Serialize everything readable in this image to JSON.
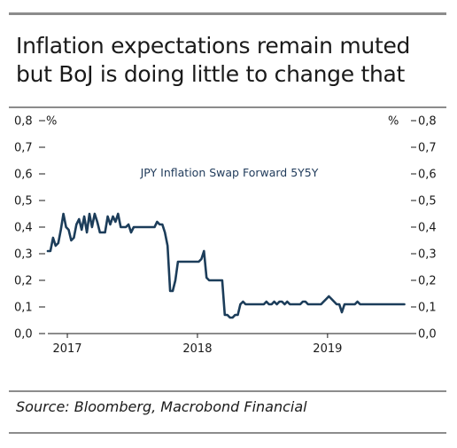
{
  "title": "Inflation expectations remain muted but BoJ is doing little to change that",
  "source": "Source: Bloomberg, Macrobond Financial",
  "colors": {
    "line": "#1c3d5a",
    "axis": "#1a1a1a",
    "rule": "#8c8c8c"
  },
  "chart_data": {
    "type": "line",
    "title": "",
    "series_label": "JPY Inflation Swap Forward 5Y5Y",
    "left_unit": "%",
    "right_unit": "%",
    "ylim": [
      0,
      0.8
    ],
    "y_ticks": [
      "0,0",
      "0,1",
      "0,2",
      "0,3",
      "0,4",
      "0,5",
      "0,6",
      "0,7",
      "0,8"
    ],
    "y_tick_values": [
      0,
      0.1,
      0.2,
      0.3,
      0.4,
      0.5,
      0.6,
      0.7,
      0.8
    ],
    "x_tick_labels": [
      "2017",
      "2018",
      "2019"
    ],
    "x_tick_values": [
      2017.0,
      2018.0,
      2019.0
    ],
    "xlim": [
      2016.85,
      2019.6
    ],
    "grid": false,
    "series": [
      {
        "name": "JPY Inflation Swap Forward 5Y5Y",
        "x": [
          2016.85,
          2016.87,
          2016.89,
          2016.91,
          2016.93,
          2016.95,
          2016.97,
          2016.99,
          2017.01,
          2017.03,
          2017.05,
          2017.07,
          2017.09,
          2017.11,
          2017.13,
          2017.15,
          2017.17,
          2017.19,
          2017.21,
          2017.23,
          2017.25,
          2017.27,
          2017.29,
          2017.31,
          2017.33,
          2017.35,
          2017.37,
          2017.39,
          2017.41,
          2017.43,
          2017.45,
          2017.47,
          2017.49,
          2017.51,
          2017.53,
          2017.55,
          2017.57,
          2017.59,
          2017.61,
          2017.63,
          2017.65,
          2017.67,
          2017.69,
          2017.71,
          2017.73,
          2017.75,
          2017.77,
          2017.79,
          2017.81,
          2017.83,
          2017.85,
          2017.87,
          2017.89,
          2017.91,
          2017.93,
          2017.95,
          2017.97,
          2017.99,
          2018.01,
          2018.03,
          2018.05,
          2018.07,
          2018.09,
          2018.11,
          2018.13,
          2018.15,
          2018.17,
          2018.19,
          2018.21,
          2018.23,
          2018.25,
          2018.27,
          2018.29,
          2018.31,
          2018.33,
          2018.35,
          2018.37,
          2018.39,
          2018.41,
          2018.43,
          2018.45,
          2018.47,
          2018.49,
          2018.51,
          2018.53,
          2018.55,
          2018.57,
          2018.59,
          2018.61,
          2018.63,
          2018.65,
          2018.67,
          2018.69,
          2018.71,
          2018.73,
          2018.75,
          2018.77,
          2018.79,
          2018.81,
          2018.83,
          2018.85,
          2018.87,
          2018.89,
          2018.91,
          2018.93,
          2018.95,
          2018.97,
          2018.99,
          2019.01,
          2019.03,
          2019.05,
          2019.07,
          2019.09,
          2019.11,
          2019.13,
          2019.15,
          2019.17,
          2019.19,
          2019.21,
          2019.23,
          2019.25,
          2019.27,
          2019.29,
          2019.31,
          2019.33,
          2019.35,
          2019.37,
          2019.39,
          2019.41,
          2019.43,
          2019.45,
          2019.47,
          2019.49,
          2019.51,
          2019.53,
          2019.55,
          2019.57,
          2019.59
        ],
        "values": [
          0.31,
          0.31,
          0.36,
          0.33,
          0.34,
          0.39,
          0.45,
          0.4,
          0.39,
          0.35,
          0.36,
          0.41,
          0.43,
          0.39,
          0.44,
          0.38,
          0.45,
          0.4,
          0.45,
          0.42,
          0.38,
          0.38,
          0.38,
          0.44,
          0.41,
          0.44,
          0.42,
          0.45,
          0.4,
          0.4,
          0.4,
          0.41,
          0.38,
          0.4,
          0.4,
          0.4,
          0.4,
          0.4,
          0.4,
          0.4,
          0.4,
          0.4,
          0.42,
          0.41,
          0.41,
          0.38,
          0.33,
          0.16,
          0.16,
          0.2,
          0.27,
          0.27,
          0.27,
          0.27,
          0.27,
          0.27,
          0.27,
          0.27,
          0.27,
          0.28,
          0.31,
          0.21,
          0.2,
          0.2,
          0.2,
          0.2,
          0.2,
          0.2,
          0.07,
          0.07,
          0.06,
          0.06,
          0.07,
          0.07,
          0.11,
          0.12,
          0.11,
          0.11,
          0.11,
          0.11,
          0.11,
          0.11,
          0.11,
          0.11,
          0.12,
          0.11,
          0.11,
          0.12,
          0.11,
          0.12,
          0.12,
          0.11,
          0.12,
          0.11,
          0.11,
          0.11,
          0.11,
          0.11,
          0.12,
          0.12,
          0.11,
          0.11,
          0.11,
          0.11,
          0.11,
          0.11,
          0.12,
          0.13,
          0.14,
          0.13,
          0.12,
          0.11,
          0.11,
          0.08,
          0.11,
          0.11,
          0.11,
          0.11,
          0.11,
          0.12,
          0.11,
          0.11,
          0.11,
          0.11,
          0.11,
          0.11,
          0.11,
          0.11,
          0.11,
          0.11,
          0.11,
          0.11,
          0.11,
          0.11,
          0.11,
          0.11,
          0.11,
          0.11
        ]
      }
    ]
  }
}
